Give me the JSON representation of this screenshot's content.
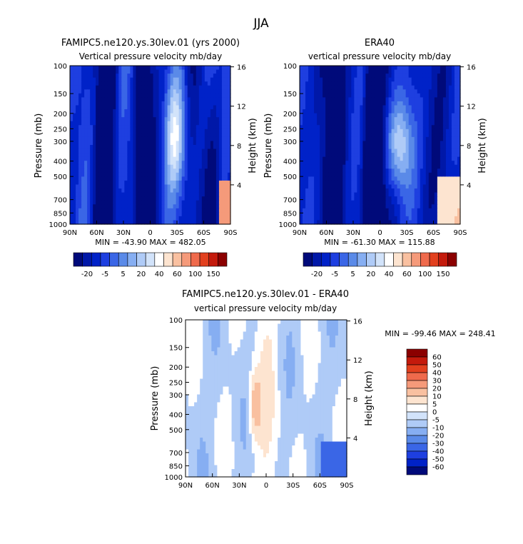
{
  "figure_title": "JJA",
  "colors": {
    "levels": [
      "#000a7a",
      "#0018a8",
      "#0022c8",
      "#1e3fe0",
      "#3a66e6",
      "#5a8ae8",
      "#86aef2",
      "#afcbf7",
      "#d2e3fa",
      "#ffffff",
      "#fde4d0",
      "#f9c0a0",
      "#f59a7a",
      "#ef6a4c",
      "#e2401e",
      "#c41a0c",
      "#8b0000"
    ]
  },
  "chart_data": [
    {
      "type": "heatmap",
      "title": "FAMIPC5.ne120.ys.30lev.01 (yrs 2000)",
      "subtitle": "Vertical pressure velocity  mb/day",
      "ylabel": "Pressure (mb)",
      "ylabel_right": "Height (km)",
      "x_ticks": [
        "90N",
        "60N",
        "30N",
        "0",
        "30S",
        "60S",
        "90S"
      ],
      "y_ticks": [
        "100",
        "150",
        "200",
        "250",
        "300",
        "400",
        "500",
        "700",
        "850",
        "1000"
      ],
      "y_right_ticks": [
        "4",
        "8",
        "12",
        "16"
      ],
      "stats": "MIN = -43.90   MAX = 482.05",
      "colorbar_labels": [
        "-20",
        "-5",
        "5",
        "20",
        "40",
        "60",
        "100",
        "150"
      ],
      "colorbar_orientation": "horizontal"
    },
    {
      "type": "heatmap",
      "title": "ERA40",
      "subtitle": "vertical pressure velocity  mb/day",
      "ylabel": "Pressure (mb)",
      "ylabel_right": "Height (km)",
      "x_ticks": [
        "90N",
        "60N",
        "30N",
        "0",
        "30S",
        "60S",
        "90S"
      ],
      "y_ticks": [
        "100",
        "150",
        "200",
        "250",
        "300",
        "400",
        "500",
        "700",
        "850",
        "1000"
      ],
      "y_right_ticks": [
        "4",
        "8",
        "12",
        "16"
      ],
      "stats": "MIN = -61.30   MAX = 115.88",
      "colorbar_labels": [
        "-20",
        "-5",
        "5",
        "20",
        "40",
        "60",
        "100",
        "150"
      ],
      "colorbar_orientation": "horizontal"
    },
    {
      "type": "heatmap",
      "title": "FAMIPC5.ne120.ys.30lev.01 - ERA40",
      "subtitle": "vertical pressure velocity  mb/day",
      "ylabel": "Pressure (mb)",
      "ylabel_right": "Height (km)",
      "x_ticks": [
        "90N",
        "60N",
        "30N",
        "0",
        "30S",
        "60S",
        "90S"
      ],
      "y_ticks": [
        "100",
        "150",
        "200",
        "250",
        "300",
        "400",
        "500",
        "700",
        "850",
        "1000"
      ],
      "y_right_ticks": [
        "4",
        "8",
        "12",
        "16"
      ],
      "stats": "MIN = -99.46   MAX = 248.41",
      "colorbar_labels": [
        "60",
        "50",
        "40",
        "30",
        "20",
        "10",
        "5",
        "0",
        "-5",
        "-10",
        "-20",
        "-30",
        "-40",
        "-50",
        "-60"
      ],
      "colorbar_orientation": "vertical"
    }
  ]
}
